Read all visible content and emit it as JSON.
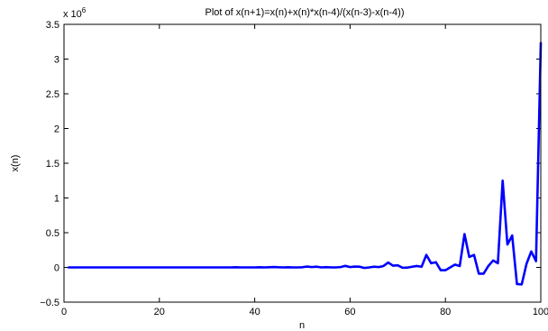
{
  "chart_data": {
    "type": "line",
    "title": "Plot of x(n+1)=x(n)+x(n)*x(n-4)/(x(n-3)-x(n-4))",
    "xlabel": "n",
    "ylabel": "x(n)",
    "y_multiplier_label": "x 10",
    "y_multiplier_exponent": "6",
    "xlim": [
      0,
      100
    ],
    "ylim": [
      -0.5,
      3.5
    ],
    "x_ticks": [
      0,
      20,
      40,
      60,
      80,
      100
    ],
    "x_tick_labels": [
      "0",
      "20",
      "40",
      "60",
      "80",
      "100"
    ],
    "y_ticks": [
      -0.5,
      0,
      0.5,
      1,
      1.5,
      2,
      2.5,
      3,
      3.5
    ],
    "y_tick_labels": [
      "−0.5",
      "0",
      "0.5",
      "1",
      "1.5",
      "2",
      "2.5",
      "3",
      "3.5"
    ],
    "grid": false,
    "line_color": "#0000ff",
    "series": [
      {
        "x": [
          1,
          2,
          3,
          4,
          5,
          6,
          7,
          8,
          9,
          10,
          11,
          12,
          13,
          14,
          15,
          16,
          17,
          18,
          19,
          20,
          21,
          22,
          23,
          24,
          25,
          26,
          27,
          28,
          29,
          30,
          31,
          32,
          33,
          34,
          35,
          36,
          37,
          38,
          39,
          40,
          41,
          42,
          43,
          44,
          45,
          46,
          47,
          48,
          49,
          50,
          51,
          52,
          53,
          54,
          55,
          56,
          57,
          58,
          59,
          60,
          61,
          62,
          63,
          64,
          65,
          66,
          67,
          68,
          69,
          70,
          71,
          72,
          73,
          74,
          75,
          76,
          77,
          78,
          79,
          80,
          81,
          82,
          83,
          84,
          85,
          86,
          87,
          88,
          89,
          90,
          91,
          92,
          93,
          94,
          95,
          96,
          97,
          98,
          99,
          100
        ],
        "values": [
          0,
          0,
          0,
          0,
          0,
          0,
          0,
          0,
          0,
          0,
          0,
          0,
          0,
          0,
          0,
          0,
          0,
          0,
          0,
          0,
          0,
          0,
          0,
          0,
          0,
          0,
          0,
          0,
          0,
          0,
          0,
          0,
          0,
          0,
          0,
          0.002,
          0,
          0,
          0,
          0,
          0.002,
          0,
          0.003,
          0.006,
          0.002,
          0,
          0.002,
          0,
          0,
          0.003,
          0.012,
          0.005,
          0.01,
          0,
          0.004,
          0,
          0,
          0.005,
          0.022,
          0.005,
          0.012,
          0.01,
          -0.008,
          0,
          0.01,
          0.005,
          0.02,
          0.07,
          0.025,
          0.03,
          -0.005,
          -0.003,
          0.01,
          0.02,
          0.01,
          0.18,
          0.06,
          0.075,
          -0.04,
          -0.04,
          0,
          0.04,
          0.02,
          0.48,
          0.15,
          0.18,
          -0.09,
          -0.09,
          0.02,
          0.1,
          0.06,
          1.25,
          0.33,
          0.46,
          -0.24,
          -0.245,
          0.05,
          0.23,
          0.09,
          3.23
        ]
      }
    ]
  }
}
